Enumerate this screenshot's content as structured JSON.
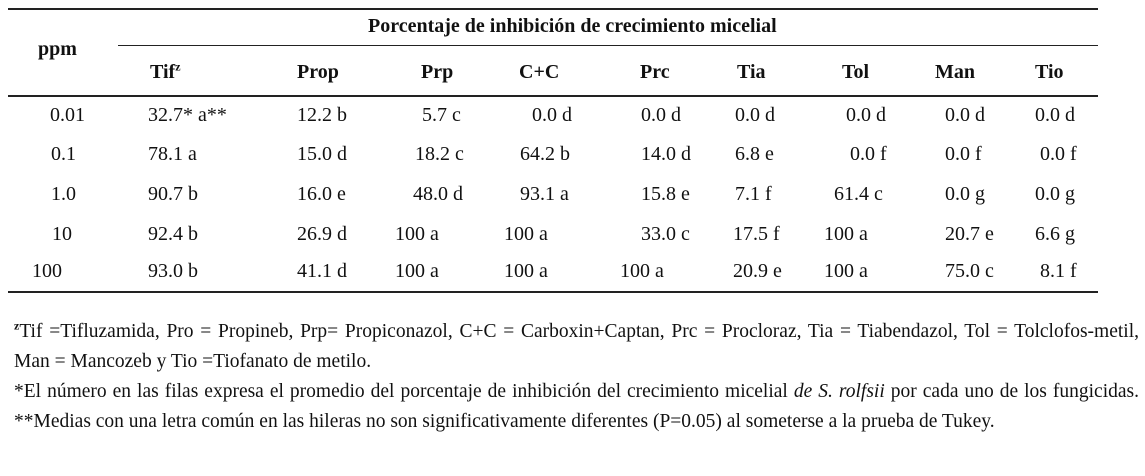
{
  "table": {
    "ppm_header": "ppm",
    "span_header": "Porcentaje de inhibición de crecimiento micelial",
    "columns": [
      "Tif",
      "Prop",
      "Prp",
      "C+C",
      "Prc",
      "Tia",
      "Tol",
      "Man",
      "Tio"
    ],
    "tif_superscript": "z",
    "rows": [
      {
        "ppm": "0.01",
        "cells": [
          "32.7* a**",
          "12.2 b",
          "5.7 c",
          "0.0 d",
          "0.0 d",
          "0.0 d",
          "0.0 d",
          "0.0 d",
          "0.0 d"
        ]
      },
      {
        "ppm": "0.1",
        "cells": [
          "78.1 a",
          "15.0 d",
          "18.2 c",
          "64.2 b",
          "14.0 d",
          "6.8 e",
          "0.0 f",
          "0.0 f",
          "0.0 f"
        ]
      },
      {
        "ppm": "1.0",
        "cells": [
          "90.7 b",
          "16.0 e",
          "48.0 d",
          "93.1 a",
          "15.8 e",
          "7.1 f",
          "61.4 c",
          "0.0 g",
          "0.0 g"
        ]
      },
      {
        "ppm": "10",
        "cells": [
          "92.4 b",
          "26.9 d",
          "100 a",
          "100 a",
          "33.0 c",
          "17.5 f",
          "100 a",
          "20.7 e",
          "6.6 g"
        ]
      },
      {
        "ppm": "100",
        "cells": [
          "93.0 b",
          "41.1 d",
          "100 a",
          "100 a",
          "100 a",
          "20.9 e",
          "100 a",
          "75.0 c",
          "8.1 f"
        ]
      }
    ]
  },
  "notes": {
    "line1_sup": "z",
    "line1": "Tif =Tifluzamida, Pro = Propineb, Prp= Propiconazol, C+C = Carboxin+Captan, Prc = Procloraz, Tia = Tiabendazol, Tol = Tolclofos-metil, Man = Mancozeb y Tio =Tiofanato de metilo.",
    "line2_a": "*El número en las filas expresa el promedio del porcentaje de inhibición del crecimiento micelial ",
    "line2_italic": "de S. rolfsii",
    "line2_b": " por cada uno de los fungicidas. **Medias con una letra común en las hileras no son significativamente diferentes (P=0.05) al someterse a la prueba de Tukey."
  }
}
